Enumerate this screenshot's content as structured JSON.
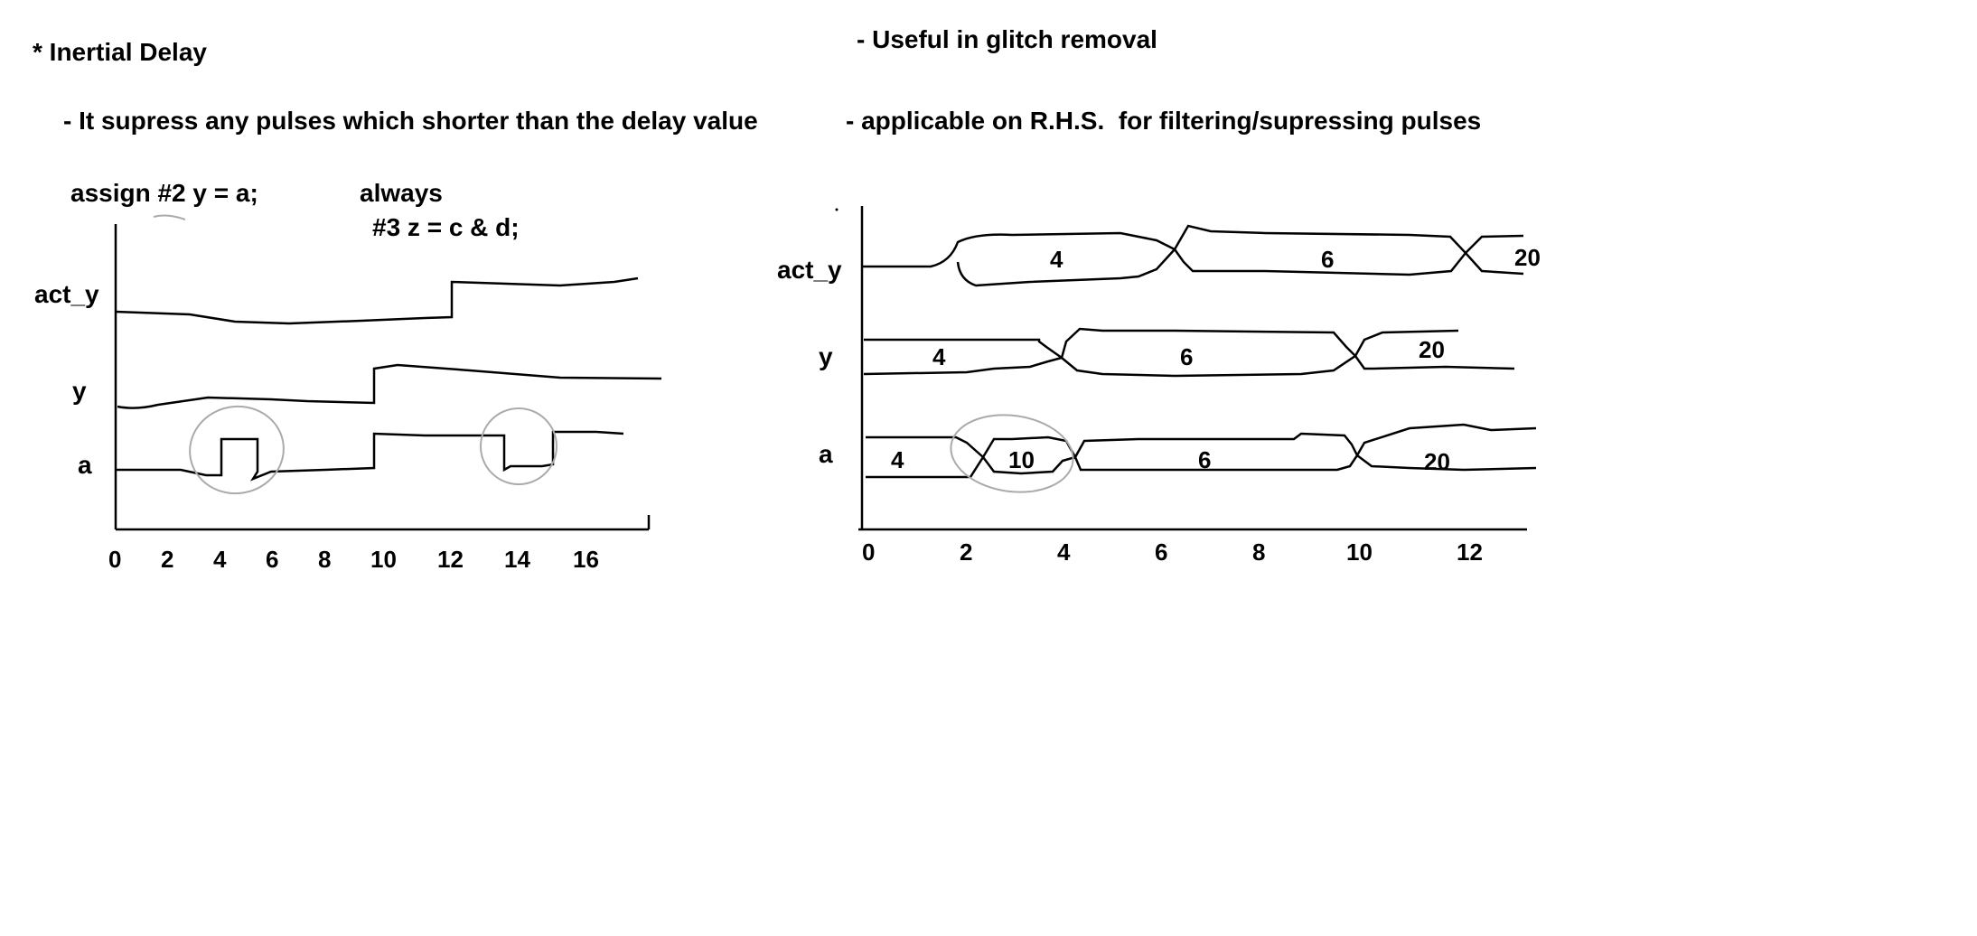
{
  "notes": {
    "heading": "* Inertial Delay",
    "point1": "- It supress any pulses which shorter than the delay value",
    "point2": "- Useful in glitch removal",
    "point3": "- applicable on R.H.S.  for filtering/supressing pulses",
    "code_assign": "assign #2 y = a;",
    "code_always": "always",
    "code_always_body": "#3 z = c & d;"
  },
  "left_diagram": {
    "signals": [
      "act_y",
      "y",
      "a"
    ],
    "x_ticks": [
      "0",
      "2",
      "4",
      "6",
      "8",
      "10",
      "12",
      "14",
      "16"
    ]
  },
  "right_diagram": {
    "signals": [
      "act_y",
      "y",
      "a"
    ],
    "x_ticks": [
      "0",
      "2",
      "4",
      "6",
      "8",
      "10",
      "12"
    ],
    "act_y_values": [
      "4",
      "6",
      "20"
    ],
    "y_values": [
      "4",
      "6",
      "20"
    ],
    "a_values": [
      "4",
      "10",
      "6",
      "20"
    ]
  }
}
